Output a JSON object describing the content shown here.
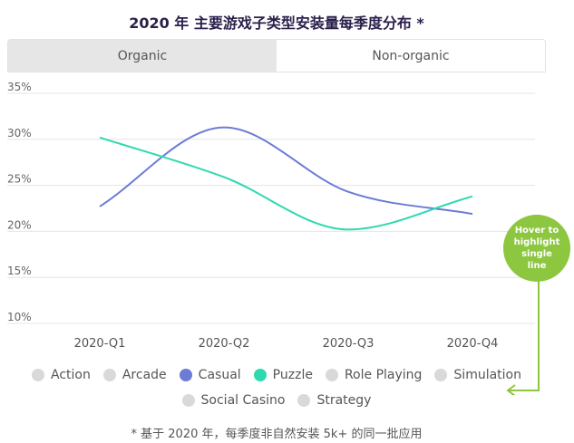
{
  "title": "2020 年 主要游戏子类型安装量每季度分布 *",
  "tabs": [
    {
      "label": "Organic",
      "active": false
    },
    {
      "label": "Non-organic",
      "active": true
    }
  ],
  "hover_hint": "Hover to highlight single line",
  "footnote": "* 基于 2020 年，每季度非自然安装 5k+ 的同一批应用",
  "legend": [
    {
      "label": "Action",
      "color": "#d9d9d9"
    },
    {
      "label": "Arcade",
      "color": "#d9d9d9"
    },
    {
      "label": "Casual",
      "color": "#6b7bd6"
    },
    {
      "label": "Puzzle",
      "color": "#2ed9b0"
    },
    {
      "label": "Role Playing",
      "color": "#d9d9d9"
    },
    {
      "label": "Simulation",
      "color": "#d9d9d9"
    },
    {
      "label": "Social Casino",
      "color": "#d9d9d9"
    },
    {
      "label": "Strategy",
      "color": "#d9d9d9"
    }
  ],
  "chart_data": {
    "type": "line",
    "categories": [
      "2020-Q1",
      "2020-Q2",
      "2020-Q3",
      "2020-Q4"
    ],
    "ylim": [
      10,
      35
    ],
    "yticks": [
      "10%",
      "15%",
      "20%",
      "25%",
      "30%",
      "35%"
    ],
    "grid": true,
    "series": [
      {
        "name": "Casual",
        "color": "#6b7bd6",
        "values": [
          22.7,
          31.3,
          24.3,
          21.9
        ]
      },
      {
        "name": "Puzzle",
        "color": "#2ed9b0",
        "values": [
          30.2,
          25.9,
          20.2,
          23.8
        ]
      }
    ]
  }
}
